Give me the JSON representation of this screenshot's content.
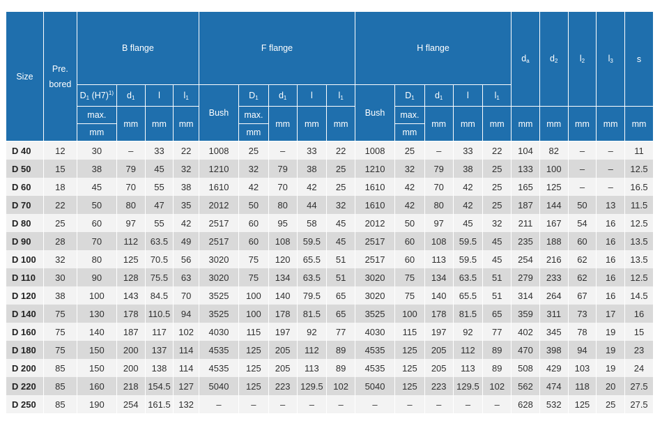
{
  "headers": {
    "size": "Size",
    "prebored": "Pre.\nbored",
    "b_flange": "B flange",
    "f_flange": "F flange",
    "h_flange": "H flange",
    "bush": "Bush",
    "max": "max.",
    "mm": "mm",
    "D1_letter": "D",
    "d_letter": "d",
    "l_letter": "l",
    "s_letter": "s",
    "sub_1": "1",
    "sub_2": "2",
    "sub_3": "3",
    "sub_a": "a",
    "h7": "(H7)",
    "footnote": "1)"
  },
  "rows": [
    [
      "D 40",
      "12",
      "30",
      "–",
      "33",
      "22",
      "1008",
      "25",
      "–",
      "33",
      "22",
      "1008",
      "25",
      "–",
      "33",
      "22",
      "104",
      "82",
      "–",
      "–",
      "11"
    ],
    [
      "D 50",
      "15",
      "38",
      "79",
      "45",
      "32",
      "1210",
      "32",
      "79",
      "38",
      "25",
      "1210",
      "32",
      "79",
      "38",
      "25",
      "133",
      "100",
      "–",
      "–",
      "12.5"
    ],
    [
      "D 60",
      "18",
      "45",
      "70",
      "55",
      "38",
      "1610",
      "42",
      "70",
      "42",
      "25",
      "1610",
      "42",
      "70",
      "42",
      "25",
      "165",
      "125",
      "–",
      "–",
      "16.5"
    ],
    [
      "D 70",
      "22",
      "50",
      "80",
      "47",
      "35",
      "2012",
      "50",
      "80",
      "44",
      "32",
      "1610",
      "42",
      "80",
      "42",
      "25",
      "187",
      "144",
      "50",
      "13",
      "11.5"
    ],
    [
      "D 80",
      "25",
      "60",
      "97",
      "55",
      "42",
      "2517",
      "60",
      "95",
      "58",
      "45",
      "2012",
      "50",
      "97",
      "45",
      "32",
      "211",
      "167",
      "54",
      "16",
      "12.5"
    ],
    [
      "D 90",
      "28",
      "70",
      "112",
      "63.5",
      "49",
      "2517",
      "60",
      "108",
      "59.5",
      "45",
      "2517",
      "60",
      "108",
      "59.5",
      "45",
      "235",
      "188",
      "60",
      "16",
      "13.5"
    ],
    [
      "D 100",
      "32",
      "80",
      "125",
      "70.5",
      "56",
      "3020",
      "75",
      "120",
      "65.5",
      "51",
      "2517",
      "60",
      "113",
      "59.5",
      "45",
      "254",
      "216",
      "62",
      "16",
      "13.5"
    ],
    [
      "D 110",
      "30",
      "90",
      "128",
      "75.5",
      "63",
      "3020",
      "75",
      "134",
      "63.5",
      "51",
      "3020",
      "75",
      "134",
      "63.5",
      "51",
      "279",
      "233",
      "62",
      "16",
      "12.5"
    ],
    [
      "D 120",
      "38",
      "100",
      "143",
      "84.5",
      "70",
      "3525",
      "100",
      "140",
      "79.5",
      "65",
      "3020",
      "75",
      "140",
      "65.5",
      "51",
      "314",
      "264",
      "67",
      "16",
      "14.5"
    ],
    [
      "D 140",
      "75",
      "130",
      "178",
      "110.5",
      "94",
      "3525",
      "100",
      "178",
      "81.5",
      "65",
      "3525",
      "100",
      "178",
      "81.5",
      "65",
      "359",
      "311",
      "73",
      "17",
      "16"
    ],
    [
      "D 160",
      "75",
      "140",
      "187",
      "117",
      "102",
      "4030",
      "115",
      "197",
      "92",
      "77",
      "4030",
      "115",
      "197",
      "92",
      "77",
      "402",
      "345",
      "78",
      "19",
      "15"
    ],
    [
      "D 180",
      "75",
      "150",
      "200",
      "137",
      "114",
      "4535",
      "125",
      "205",
      "112",
      "89",
      "4535",
      "125",
      "205",
      "112",
      "89",
      "470",
      "398",
      "94",
      "19",
      "23"
    ],
    [
      "D 200",
      "85",
      "150",
      "200",
      "138",
      "114",
      "4535",
      "125",
      "205",
      "113",
      "89",
      "4535",
      "125",
      "205",
      "113",
      "89",
      "508",
      "429",
      "103",
      "19",
      "24"
    ],
    [
      "D 220",
      "85",
      "160",
      "218",
      "154.5",
      "127",
      "5040",
      "125",
      "223",
      "129.5",
      "102",
      "5040",
      "125",
      "223",
      "129.5",
      "102",
      "562",
      "474",
      "118",
      "20",
      "27.5"
    ],
    [
      "D 250",
      "85",
      "190",
      "254",
      "161.5",
      "132",
      "–",
      "–",
      "–",
      "–",
      "–",
      "–",
      "–",
      "–",
      "–",
      "–",
      "628",
      "532",
      "125",
      "25",
      "27.5"
    ]
  ]
}
